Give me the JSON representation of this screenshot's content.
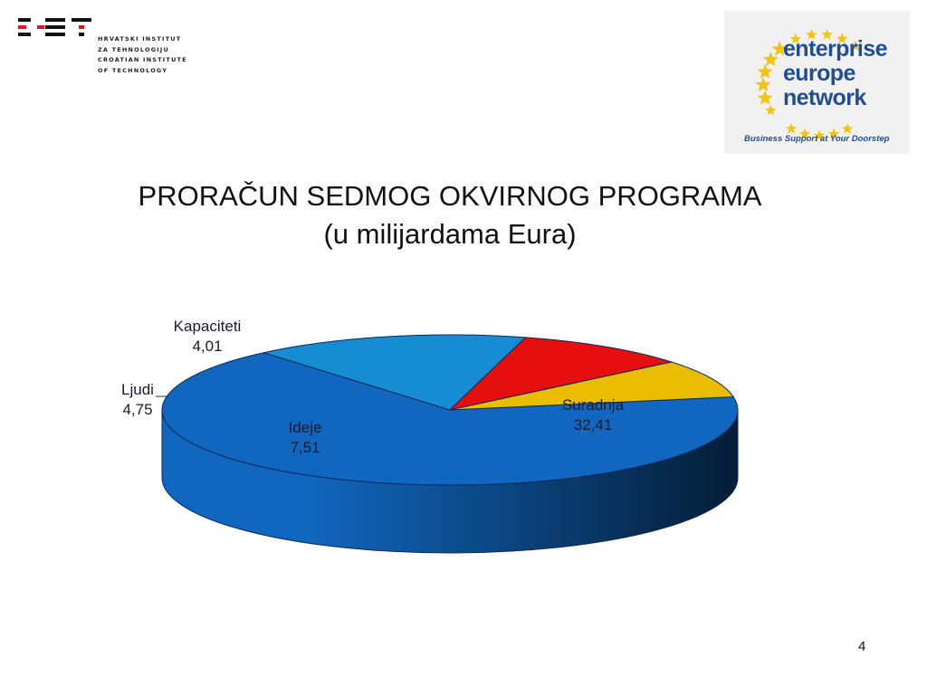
{
  "slide": {
    "title": "PRORAČUN SEDMOG OKVIRNOG PROGRAMA",
    "subtitle": "(u milijardama Eura)",
    "page_number": "4"
  },
  "hit_logo": {
    "lines": [
      "HRVATSKI INSTITUT",
      "ZA TEHNOLOGIJU",
      "CROATIAN INSTITUTE",
      "OF TECHNOLOGY"
    ],
    "mark_color": "#e4141b"
  },
  "een_logo": {
    "words": [
      "enterprise",
      "europe",
      "network"
    ],
    "tagline": "Business Support at Your Doorstep",
    "star_color": "#f1c40f",
    "text_color": "#1f4e96"
  },
  "chart_data": {
    "type": "pie",
    "style": "3d",
    "unit": "",
    "slices": [
      {
        "label": "Suradnja",
        "value": 32.41,
        "display": "32,41",
        "color": "#1167c0"
      },
      {
        "label": "Ideje",
        "value": 7.51,
        "display": "7,51",
        "color": "#168dd2"
      },
      {
        "label": "Ljudi",
        "value": 4.75,
        "display": "4,75",
        "color": "#e60f0f"
      },
      {
        "label": "Kapaciteti",
        "value": 4.01,
        "display": "4,01",
        "color": "#ebbd00"
      }
    ]
  }
}
